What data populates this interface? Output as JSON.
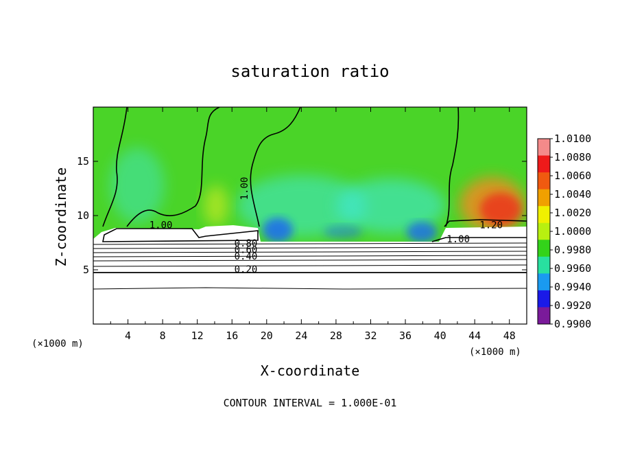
{
  "chart_data": {
    "type": "heatmap",
    "title": "saturation ratio",
    "xlabel": "X-coordinate",
    "ylabel": "Z-coordinate",
    "x_unit_label": "(×1000 m)",
    "z_unit_label": "(×1000 m)",
    "xlim": [
      0,
      50
    ],
    "ylim": [
      0,
      20
    ],
    "x_ticks": [
      4,
      8,
      12,
      16,
      20,
      24,
      28,
      32,
      36,
      40,
      44,
      48
    ],
    "y_ticks": [
      5,
      10,
      15
    ],
    "contour_labels": [
      {
        "text": "1.00",
        "x": 7.8,
        "z": 8.9
      },
      {
        "text": "1.00",
        "x": 17.8,
        "z": 12.5
      },
      {
        "text": "1.20",
        "x": 45.9,
        "z": 8.9
      },
      {
        "text": "1.00",
        "x": 42.1,
        "z": 7.6
      },
      {
        "text": "0.80",
        "x": 17.6,
        "z": 7.2
      },
      {
        "text": "0.60",
        "x": 17.6,
        "z": 6.6
      },
      {
        "text": "0.40",
        "x": 17.6,
        "z": 6.0
      },
      {
        "text": "0.20",
        "x": 17.6,
        "z": 4.8
      }
    ],
    "colorbar": {
      "min": 0.99,
      "max": 1.01,
      "labels": [
        "1.0100",
        "1.0080",
        "1.0060",
        "1.0040",
        "1.0020",
        "1.0000",
        "0.9980",
        "0.9960",
        "0.9940",
        "0.9920",
        "0.9900"
      ],
      "colors": [
        "#f48a8a",
        "#ee1a1a",
        "#f05a10",
        "#f0a000",
        "#f0f000",
        "#b8f010",
        "#33d31a",
        "#28e0a0",
        "#1a9af0",
        "#1a1ae8",
        "#7a1a9a"
      ]
    },
    "field_colors": {
      "background": "#4ad428",
      "mid_layer": "#3ee07a",
      "dry_blue": "#1a6af0",
      "cyan": "#40e8d8",
      "warm": "#f08a20",
      "hot": "#ee2a1a",
      "yellow": "#e8f020"
    },
    "footer": "CONTOUR INTERVAL =  1.000E-01"
  }
}
